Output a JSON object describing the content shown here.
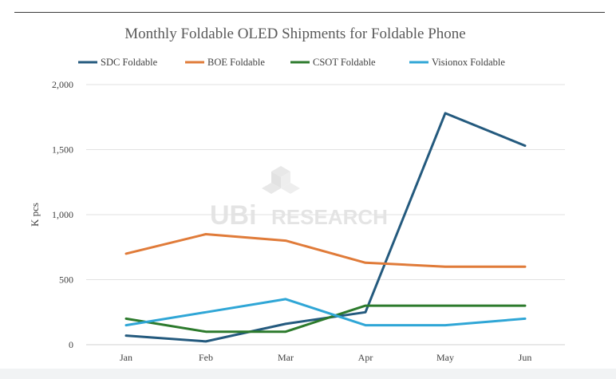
{
  "chart_data": {
    "type": "line",
    "title": "Monthly Foldable OLED Shipments for Foldable Phone",
    "xlabel": "",
    "ylabel": "K pcs",
    "categories": [
      "Jan",
      "Feb",
      "Mar",
      "Apr",
      "May",
      "Jun"
    ],
    "ylim": [
      0,
      2000
    ],
    "yticks": [
      0,
      500,
      1000,
      1500,
      2000
    ],
    "ytick_labels": [
      "0",
      "500",
      "1,000",
      "1,500",
      "2,000"
    ],
    "grid": true,
    "legend_position": "top",
    "series": [
      {
        "name": "SDC Foldable",
        "color": "#245a7e",
        "values": [
          70,
          25,
          160,
          250,
          1780,
          1530
        ]
      },
      {
        "name": "BOE Foldable",
        "color": "#e07b39",
        "values": [
          700,
          850,
          800,
          630,
          600,
          600
        ]
      },
      {
        "name": "CSOT Foldable",
        "color": "#2c7a2c",
        "values": [
          200,
          100,
          100,
          300,
          300,
          300
        ]
      },
      {
        "name": "Visionox Foldable",
        "color": "#2fa6d6",
        "values": [
          150,
          250,
          350,
          150,
          150,
          200
        ]
      }
    ]
  },
  "watermark": {
    "brand": "UBi",
    "text": "RESEARCH"
  }
}
